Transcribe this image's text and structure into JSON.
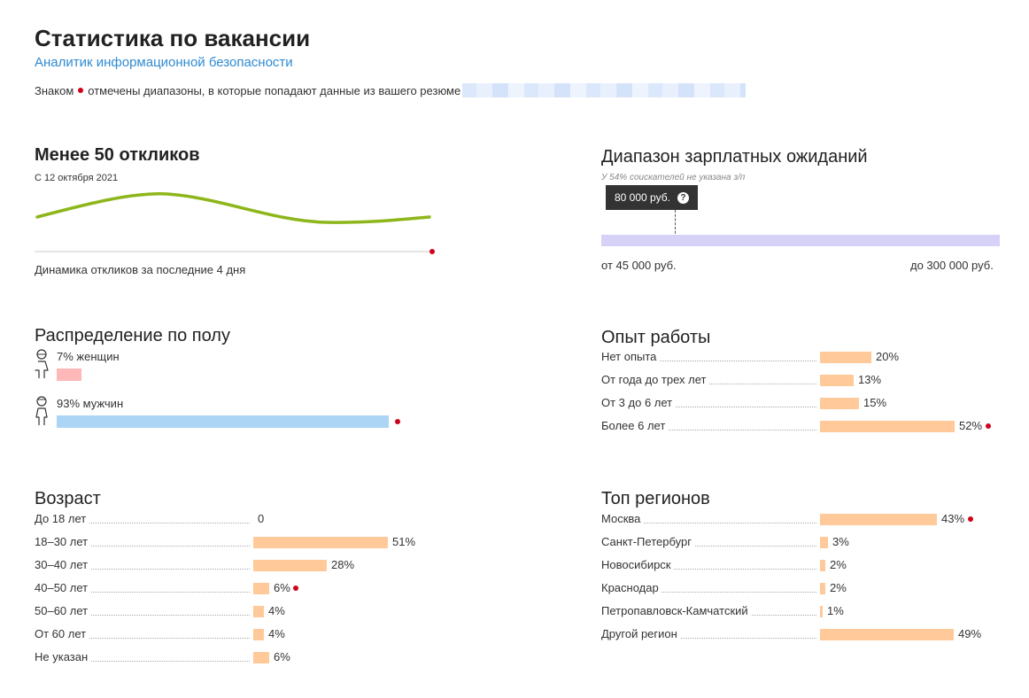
{
  "page": {
    "title": "Статистика по вакансии",
    "subtitle": "Аналитик информационной безопасности",
    "note_before": "Знаком",
    "note_after": "отмечены диапазоны, в которые попадают данные из вашего резюме"
  },
  "responses": {
    "heading": "Менее 50 откликов",
    "since": "С 12 октября 2021",
    "caption": "Динамика откликов за последние 4 дня"
  },
  "salary": {
    "heading": "Диапазон зарплатных ожиданий",
    "note": "У 54% соискателей не указана з/п",
    "tooltip": "80 000 руб.",
    "tooltip_help": "?",
    "min_label": "от 45 000 руб.",
    "max_label": "до 300 000 руб.",
    "min_value": 45000,
    "max_value": 300000,
    "marker_value": 80000,
    "bar_color": "#d6d2f7"
  },
  "gender": {
    "heading": "Распределение по полу",
    "women_label": "7% женщин",
    "women_value": 7,
    "women_color": "#ffb8b8",
    "men_label": "93% мужчин",
    "men_value": 93,
    "men_color": "#acd4f5",
    "highlight": "men"
  },
  "experience": {
    "heading": "Опыт работы",
    "items": [
      {
        "label": "Нет опыта",
        "pct": "20%",
        "value": 20,
        "marked": false
      },
      {
        "label": "От года до трех лет",
        "pct": "13%",
        "value": 13,
        "marked": false
      },
      {
        "label": "От 3 до 6 лет",
        "pct": "15%",
        "value": 15,
        "marked": false
      },
      {
        "label": "Более 6 лет",
        "pct": "52%",
        "value": 52,
        "marked": true
      }
    ]
  },
  "age": {
    "heading": "Возраст",
    "items": [
      {
        "label": "До 18 лет",
        "pct": "0",
        "value": 0,
        "marked": false
      },
      {
        "label": "18–30 лет",
        "pct": "51%",
        "value": 51,
        "marked": false
      },
      {
        "label": "30–40 лет",
        "pct": "28%",
        "value": 28,
        "marked": false
      },
      {
        "label": "40–50 лет",
        "pct": "6%",
        "value": 6,
        "marked": true
      },
      {
        "label": "50–60 лет",
        "pct": "4%",
        "value": 4,
        "marked": false
      },
      {
        "label": "От 60 лет",
        "pct": "4%",
        "value": 4,
        "marked": false
      },
      {
        "label": "Не указан",
        "pct": "6%",
        "value": 6,
        "marked": false
      }
    ]
  },
  "regions": {
    "heading": "Топ регионов",
    "items": [
      {
        "label": "Москва",
        "pct": "43%",
        "value": 43,
        "marked": true
      },
      {
        "label": "Санкт-Петербург",
        "pct": "3%",
        "value": 3,
        "marked": false
      },
      {
        "label": "Новосибирск",
        "pct": "2%",
        "value": 2,
        "marked": false
      },
      {
        "label": "Краснодар",
        "pct": "2%",
        "value": 2,
        "marked": false
      },
      {
        "label": "Петропавловск-Камчатский",
        "pct": "1%",
        "value": 1,
        "marked": false
      },
      {
        "label": "Другой регион",
        "pct": "49%",
        "value": 49,
        "marked": false
      }
    ]
  },
  "colors": {
    "accent_link": "#2f8bd1",
    "marker_red": "#d0021b",
    "trend_line": "#8db61a",
    "bar_orange": "#ffc99a"
  }
}
